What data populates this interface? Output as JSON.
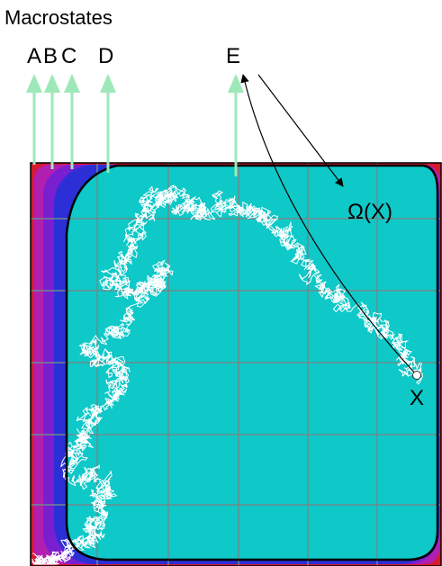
{
  "title": "Macrostates",
  "macrostate_labels": [
    "A",
    "B",
    "C",
    "D",
    "E"
  ],
  "omega_label": "Ω(X)",
  "point_label": "X",
  "colors": {
    "fill_E": "#0fc8c8",
    "fill_D": "#2c2fd6",
    "fill_C": "#7a1fd0",
    "fill_B": "#b11fb0",
    "fill_A": "#d61a30",
    "arrow": "#9de8b8",
    "grid": "#6f8a8a",
    "walk": "#ffffff",
    "outline": "#000000"
  },
  "icons": {
    "macrostate_arrow": "up-arrow-icon",
    "curved_arrow": "curved-arrow-icon"
  }
}
